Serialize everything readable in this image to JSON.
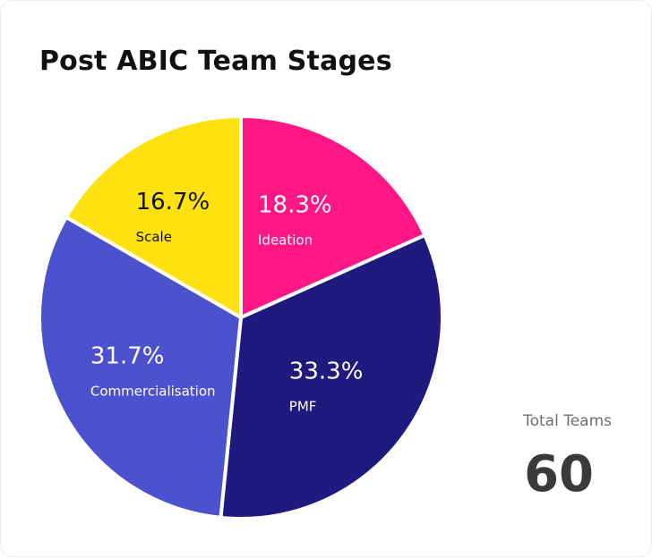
{
  "card": {
    "title": "Post ABIC Team Stages"
  },
  "summary": {
    "label": "Total Teams",
    "value": "60"
  },
  "colors": {
    "ideation": "#FF1785",
    "pmf": "#211A7E",
    "commercialisation": "#4C52CD",
    "scale": "#FFE10F",
    "label_dark": "#111111",
    "label_light": "#FFFFFF"
  },
  "chart_data": {
    "type": "pie",
    "title": "Post ABIC Team Stages",
    "slices": [
      {
        "label": "Ideation",
        "value": 18.3,
        "value_label": "18.3%",
        "color": "#FF1785"
      },
      {
        "label": "PMF",
        "value": 33.3,
        "value_label": "33.3%",
        "color": "#211A7E"
      },
      {
        "label": "Commercialisation",
        "value": 31.7,
        "value_label": "31.7%",
        "color": "#4C52CD"
      },
      {
        "label": "Scale",
        "value": 16.7,
        "value_label": "16.7%",
        "color": "#FFE10F"
      }
    ],
    "start": "12 o'clock",
    "direction": "clockwise",
    "legend": "none"
  }
}
